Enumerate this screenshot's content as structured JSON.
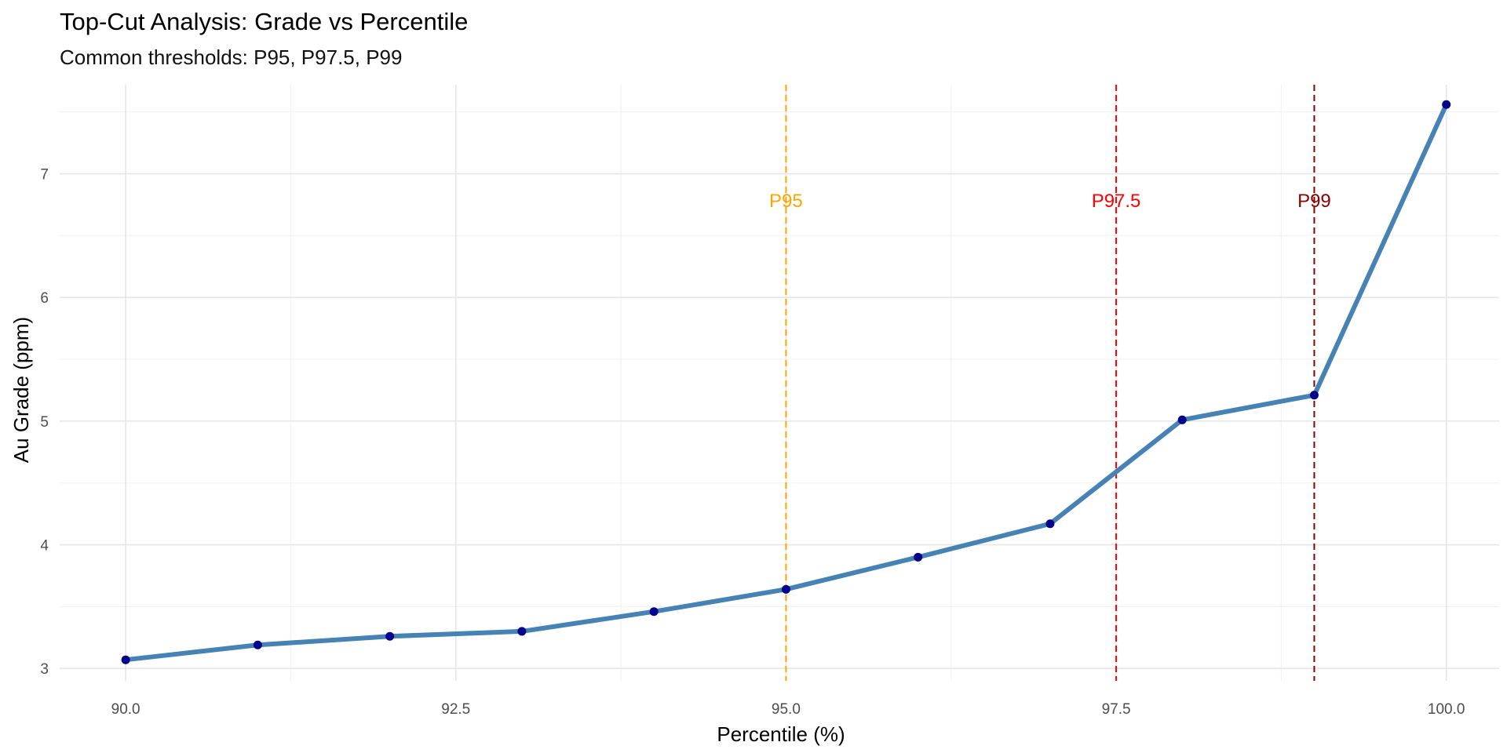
{
  "chart_data": {
    "type": "line",
    "title": "Top-Cut Analysis: Grade vs Percentile",
    "subtitle": "Common thresholds: P95, P97.5, P99",
    "xlabel": "Percentile (%)",
    "ylabel": "Au Grade (ppm)",
    "xlim": [
      89.5,
      100.4
    ],
    "ylim": [
      2.9,
      7.72
    ],
    "x_ticks": [
      90.0,
      92.5,
      95.0,
      97.5,
      100.0
    ],
    "x_tick_labels": [
      "90.0",
      "92.5",
      "95.0",
      "97.5",
      "100.0"
    ],
    "y_ticks": [
      3,
      4,
      5,
      6,
      7
    ],
    "y_tick_labels": [
      "3",
      "4",
      "5",
      "6",
      "7"
    ],
    "grid": true,
    "series": [
      {
        "name": "Au Grade",
        "x": [
          90,
          91,
          92,
          93,
          94,
          95,
          96,
          97,
          98,
          99,
          100
        ],
        "values": [
          3.07,
          3.19,
          3.26,
          3.3,
          3.46,
          3.64,
          3.9,
          4.17,
          5.01,
          5.21,
          7.56
        ],
        "line_color": "#4682B4",
        "point_color": "#00008B"
      }
    ],
    "thresholds": [
      {
        "label": "P95",
        "x": 95,
        "color": "#FFA500"
      },
      {
        "label": "P97.5",
        "x": 97.5,
        "color": "#FF0000"
      },
      {
        "label": "P99",
        "x": 99,
        "color": "#8B0000"
      }
    ],
    "threshold_label_y": 6.78
  }
}
